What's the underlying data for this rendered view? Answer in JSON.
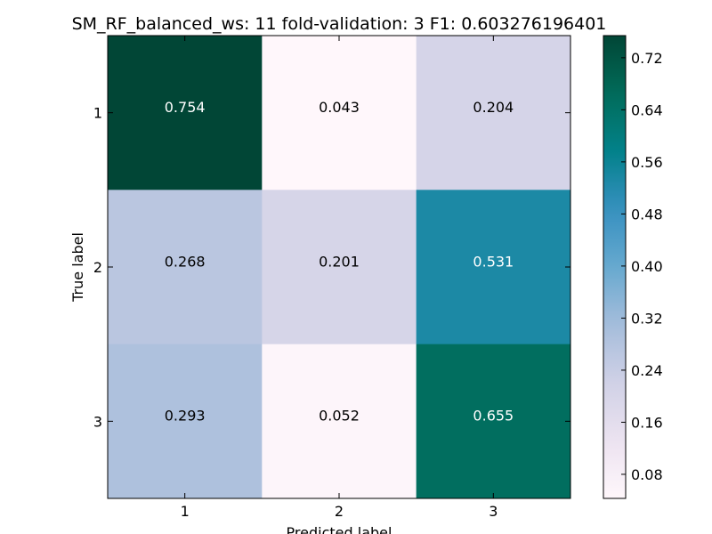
{
  "chart_data": {
    "type": "heatmap",
    "title": "SM_RF_balanced_ws: 11 fold-validation: 3 F1: 0.603276196401",
    "xlabel": "Predicted label",
    "ylabel": "True label",
    "x_categories": [
      "1",
      "2",
      "3"
    ],
    "y_categories": [
      "1",
      "2",
      "3"
    ],
    "values": [
      [
        0.754,
        0.043,
        0.204
      ],
      [
        0.268,
        0.201,
        0.531
      ],
      [
        0.293,
        0.052,
        0.655
      ]
    ],
    "cell_labels": [
      [
        "0.754",
        "0.043",
        "0.204"
      ],
      [
        "0.268",
        "0.201",
        "0.531"
      ],
      [
        "0.293",
        "0.052",
        "0.655"
      ]
    ],
    "colormap": "PuBuGn",
    "color_range": [
      0.043,
      0.754
    ],
    "colorbar_ticks": [
      "0.08",
      "0.16",
      "0.24",
      "0.32",
      "0.40",
      "0.48",
      "0.56",
      "0.64",
      "0.72"
    ],
    "colors": {
      "low": "#fff7fb",
      "high": "#014636",
      "light_text": "#ffffff",
      "dark_text": "#000000"
    }
  }
}
